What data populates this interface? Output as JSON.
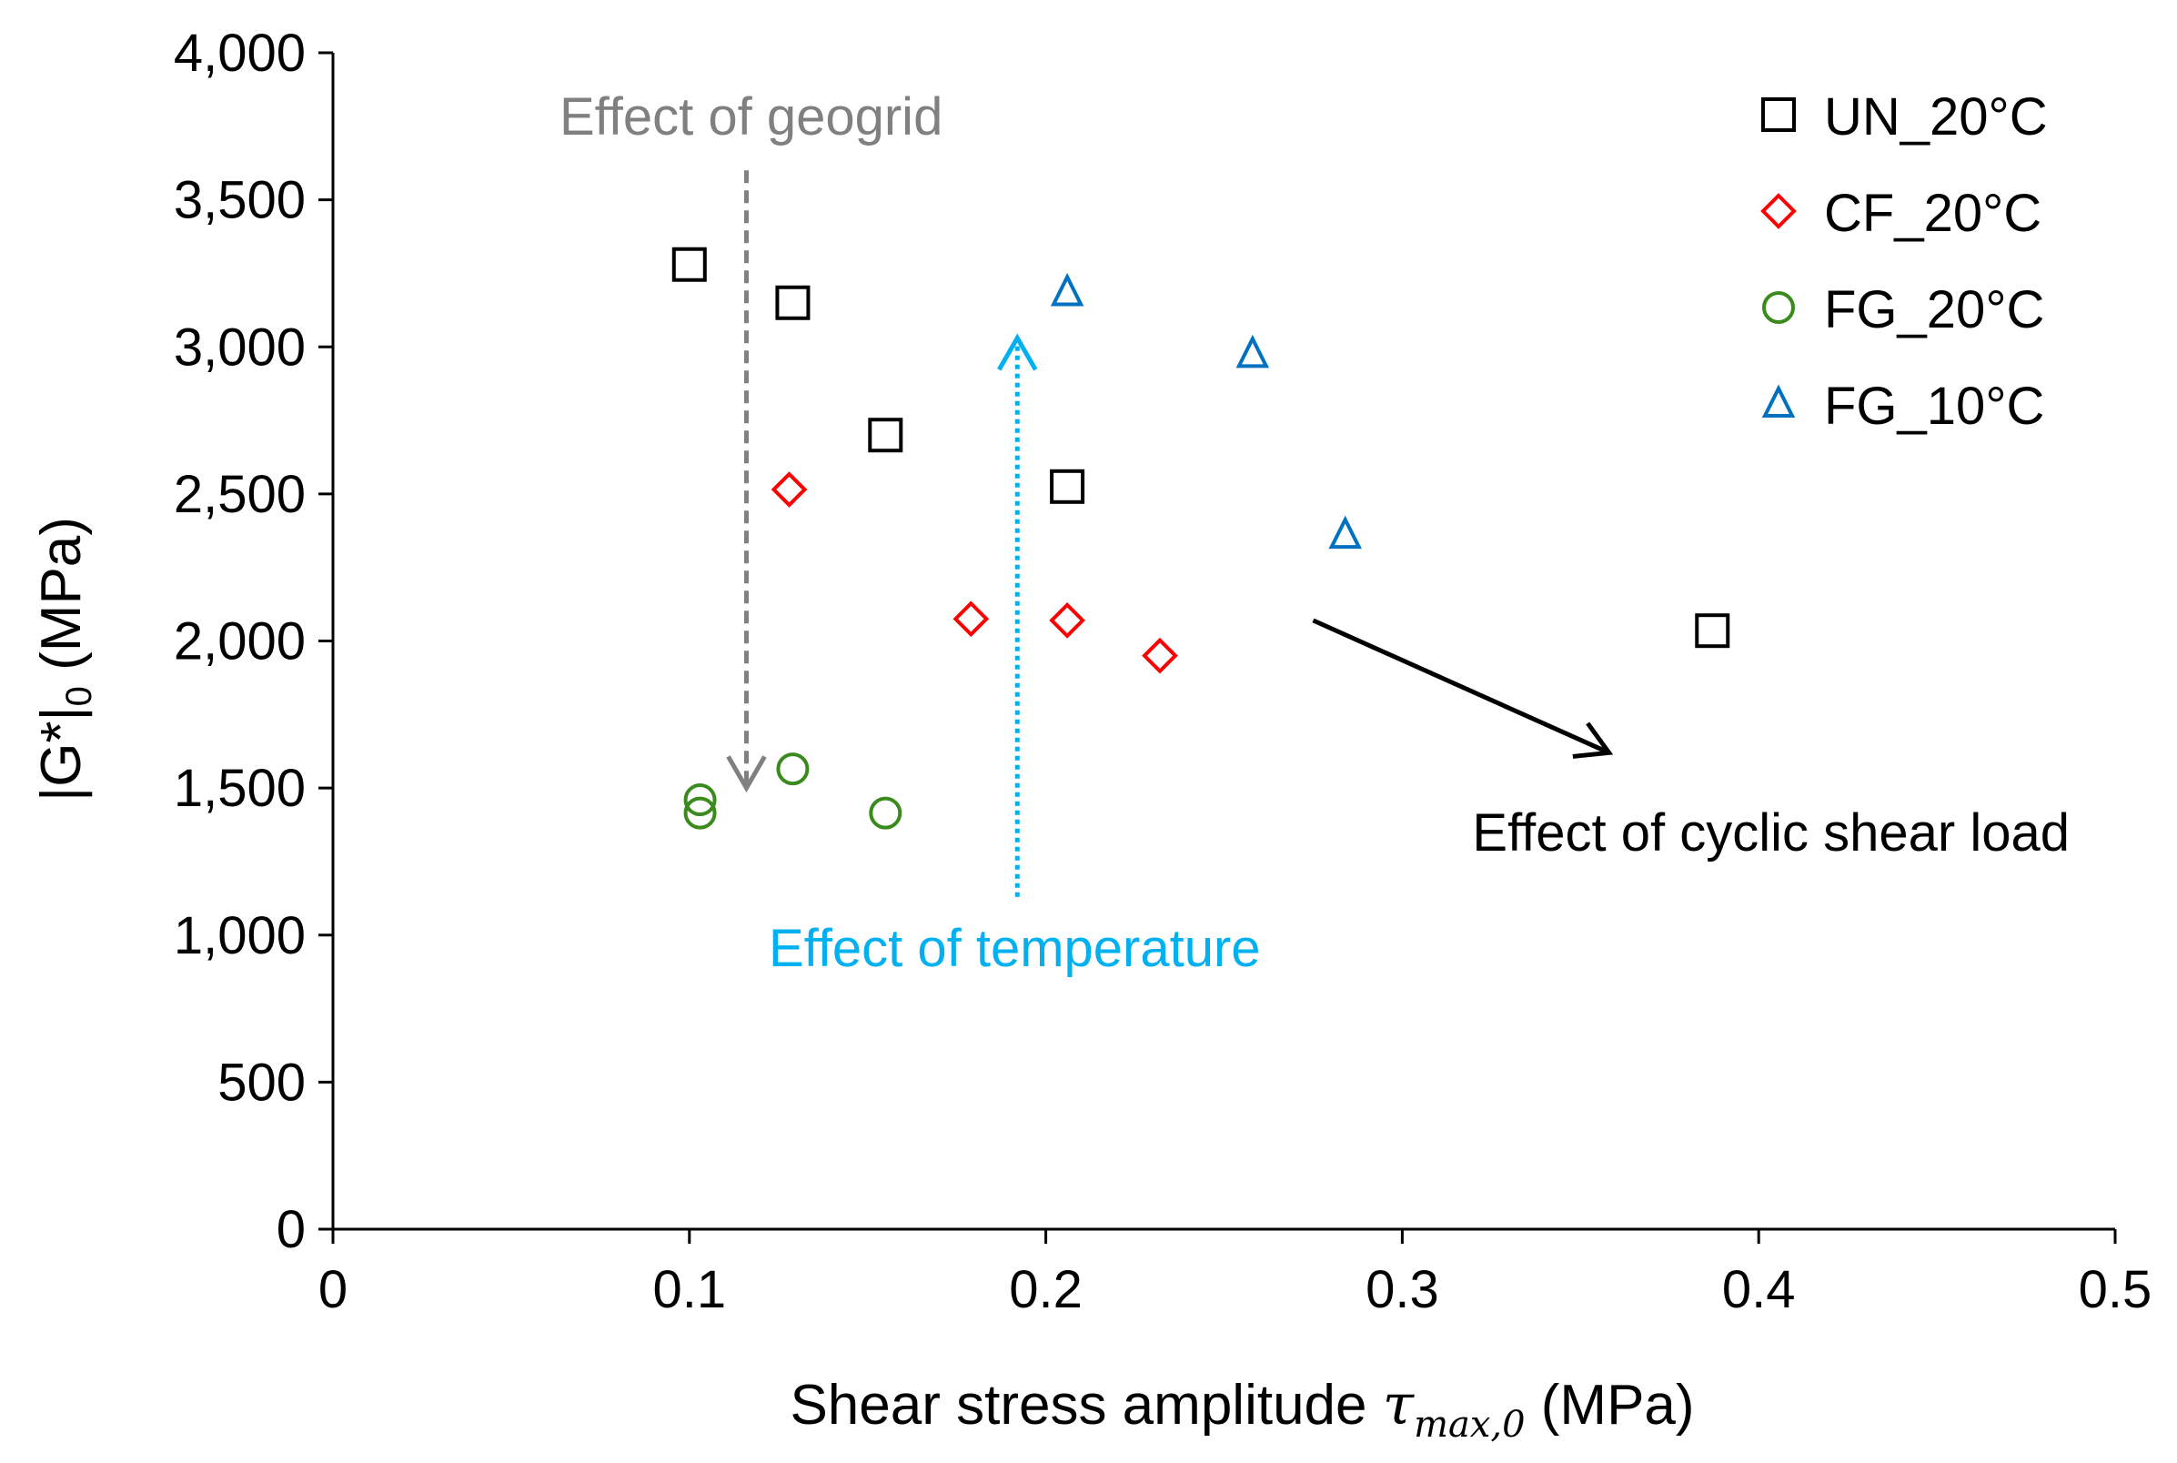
{
  "chart_data": {
    "type": "scatter",
    "xlabel": "Shear stress amplitude",
    "xlabel_symbol": "τ",
    "xlabel_subscript": "max,0",
    "xlabel_unit": " (MPa)",
    "ylabel": "|G*|",
    "ylabel_subscript": "0",
    "ylabel_unit": " (MPa)",
    "xlim": [
      0,
      0.5
    ],
    "ylim": [
      0,
      4000
    ],
    "x_ticks": [
      0,
      0.1,
      0.2,
      0.3,
      0.4,
      0.5
    ],
    "x_tick_labels": [
      "0",
      "0.1",
      "0.2",
      "0.3",
      "0.4",
      "0.5"
    ],
    "y_ticks": [
      0,
      500,
      1000,
      1500,
      2000,
      2500,
      3000,
      3500,
      4000
    ],
    "y_tick_labels": [
      "0",
      "500",
      "1,000",
      "1,500",
      "2,000",
      "2,500",
      "3,000",
      "3,500",
      "4,000"
    ],
    "grid": false,
    "legend_position": "top-right",
    "series": [
      {
        "name": "UN_20°C",
        "marker": "square",
        "color": "#000000",
        "points": [
          [
            0.1,
            3280
          ],
          [
            0.129,
            3150
          ],
          [
            0.155,
            2700
          ],
          [
            0.206,
            2525
          ],
          [
            0.387,
            2035
          ]
        ]
      },
      {
        "name": "CF_20°C",
        "marker": "diamond",
        "color": "#ff0000",
        "points": [
          [
            0.128,
            2515
          ],
          [
            0.179,
            2075
          ],
          [
            0.206,
            2070
          ],
          [
            0.232,
            1950
          ]
        ]
      },
      {
        "name": "FG_20°C",
        "marker": "circle",
        "color": "#3a8a1e",
        "points": [
          [
            0.103,
            1460
          ],
          [
            0.103,
            1415
          ],
          [
            0.129,
            1565
          ],
          [
            0.155,
            1415
          ]
        ]
      },
      {
        "name": "FG_10°C",
        "marker": "triangle",
        "color": "#0070c0",
        "points": [
          [
            0.206,
            3185
          ],
          [
            0.258,
            2975
          ],
          [
            0.284,
            2360
          ]
        ]
      }
    ],
    "annotations": [
      {
        "text": "Effect of geogrid",
        "color": "#808080",
        "arrow": {
          "from": [
            0.116,
            3600
          ],
          "to": [
            0.116,
            1500
          ],
          "style": "dashed"
        }
      },
      {
        "text": "Effect of temperature",
        "color": "#00b0f0",
        "arrow": {
          "from": [
            0.192,
            1130
          ],
          "to": [
            0.192,
            3030
          ],
          "style": "dotted"
        }
      },
      {
        "text": "Effect of cyclic shear load",
        "color": "#000000",
        "arrow": {
          "from": [
            0.275,
            2070
          ],
          "to": [
            0.358,
            1620
          ],
          "style": "solid"
        }
      }
    ]
  }
}
